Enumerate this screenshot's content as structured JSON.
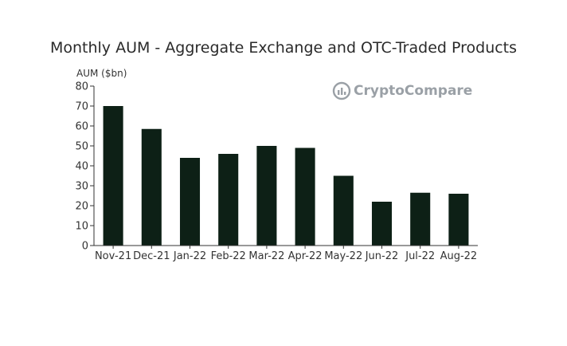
{
  "chart_data": {
    "type": "bar",
    "title": "Monthly AUM - Aggregate Exchange and OTC-Traded Products",
    "ylabel": "AUM ($bn)",
    "xlabel": "",
    "categories": [
      "Nov-21",
      "Dec-21",
      "Jan-22",
      "Feb-22",
      "Mar-22",
      "Apr-22",
      "May-22",
      "Jun-22",
      "Jul-22",
      "Aug-22"
    ],
    "values": [
      70,
      58.5,
      44,
      46,
      50,
      49,
      35,
      22,
      26.5,
      26
    ],
    "ylim": [
      0,
      80
    ],
    "yticks": [
      0,
      10,
      20,
      30,
      40,
      50,
      60,
      70,
      80
    ],
    "grid": false,
    "bar_color": "#0d2016"
  },
  "watermark": {
    "text": "CryptoCompare",
    "icon": "cryptocompare-logo-icon",
    "color": "#9aa0a6"
  }
}
